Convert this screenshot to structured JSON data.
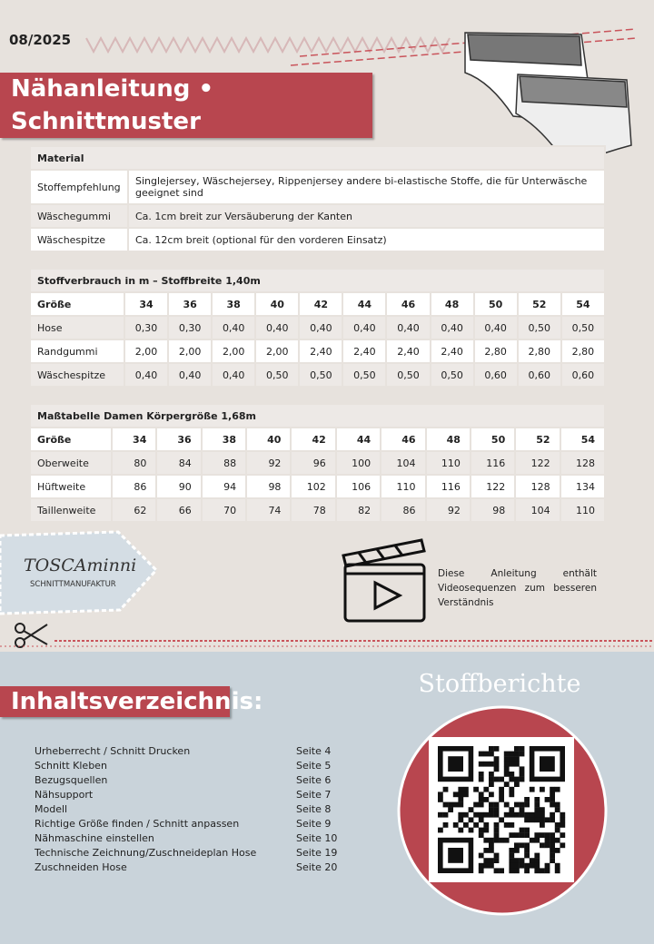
{
  "header": {
    "date": "08/2025",
    "title": "Nähanleitung • Schnittmuster"
  },
  "material": {
    "title": "Material",
    "rows": [
      [
        "Stoffempfehlung",
        "Singlejersey, Wäschejersey, Rippenjersey andere bi-elastische Stoffe, die für Unterwäsche geeignet sind"
      ],
      [
        "Wäschegummi",
        "Ca. 1cm breit zur Versäuberung der Kanten"
      ],
      [
        "Wäschespitze",
        "Ca. 12cm breit (optional für den vorderen Einsatz)"
      ]
    ]
  },
  "fabric": {
    "title": "Stoffverbrauch in m – Stoffbreite 1,40m",
    "header": [
      "Größe",
      "34",
      "36",
      "38",
      "40",
      "42",
      "44",
      "46",
      "48",
      "50",
      "52",
      "54"
    ],
    "rows": [
      [
        "Hose",
        "0,30",
        "0,30",
        "0,40",
        "0,40",
        "0,40",
        "0,40",
        "0,40",
        "0,40",
        "0,40",
        "0,50",
        "0,50"
      ],
      [
        "Randgummi",
        "2,00",
        "2,00",
        "2,00",
        "2,00",
        "2,40",
        "2,40",
        "2,40",
        "2,40",
        "2,80",
        "2,80",
        "2,80"
      ],
      [
        "Wäschespitze",
        "0,40",
        "0,40",
        "0,40",
        "0,50",
        "0,50",
        "0,50",
        "0,50",
        "0,50",
        "0,60",
        "0,60",
        "0,60"
      ]
    ]
  },
  "measurements": {
    "title": "Maßtabelle Damen Körpergröße 1,68m",
    "header": [
      "Größe",
      "34",
      "36",
      "38",
      "40",
      "42",
      "44",
      "46",
      "48",
      "50",
      "52",
      "54"
    ],
    "rows": [
      [
        "Oberweite",
        80,
        84,
        88,
        92,
        96,
        100,
        104,
        110,
        116,
        122,
        128
      ],
      [
        "Hüftweite",
        86,
        90,
        94,
        98,
        102,
        106,
        110,
        116,
        122,
        128,
        134
      ],
      [
        "Taillenweite",
        62,
        66,
        70,
        74,
        78,
        82,
        86,
        92,
        98,
        104,
        110
      ]
    ]
  },
  "logo": {
    "name": "TOSCAminni",
    "sub": "SCHNITTMANUFAKTUR"
  },
  "video_note": "Diese Anleitung enthält Videosequenzen zum besseren Verständnis",
  "toc": {
    "title": "Inhaltsverzeichnis:",
    "items": [
      {
        "label": "Urheberrecht / Schnitt Drucken",
        "page": "Seite 4"
      },
      {
        "label": "Schnitt Kleben",
        "page": "Seite 5"
      },
      {
        "label": "Bezugsquellen",
        "page": "Seite 6"
      },
      {
        "label": "Nähsupport",
        "page": "Seite 7"
      },
      {
        "label": "Modell",
        "page": "Seite 8"
      },
      {
        "label": "Richtige Größe finden / Schnitt anpassen",
        "page": "Seite 9"
      },
      {
        "label": "Nähmaschine einstellen",
        "page": "Seite 10"
      },
      {
        "label": "Technische Zeichnung/Zuschneideplan Hose",
        "page": "Seite 19"
      },
      {
        "label": "Zuschneiden Hose",
        "page": "Seite 20"
      }
    ]
  },
  "qr": {
    "title": "Stoffberichte"
  }
}
